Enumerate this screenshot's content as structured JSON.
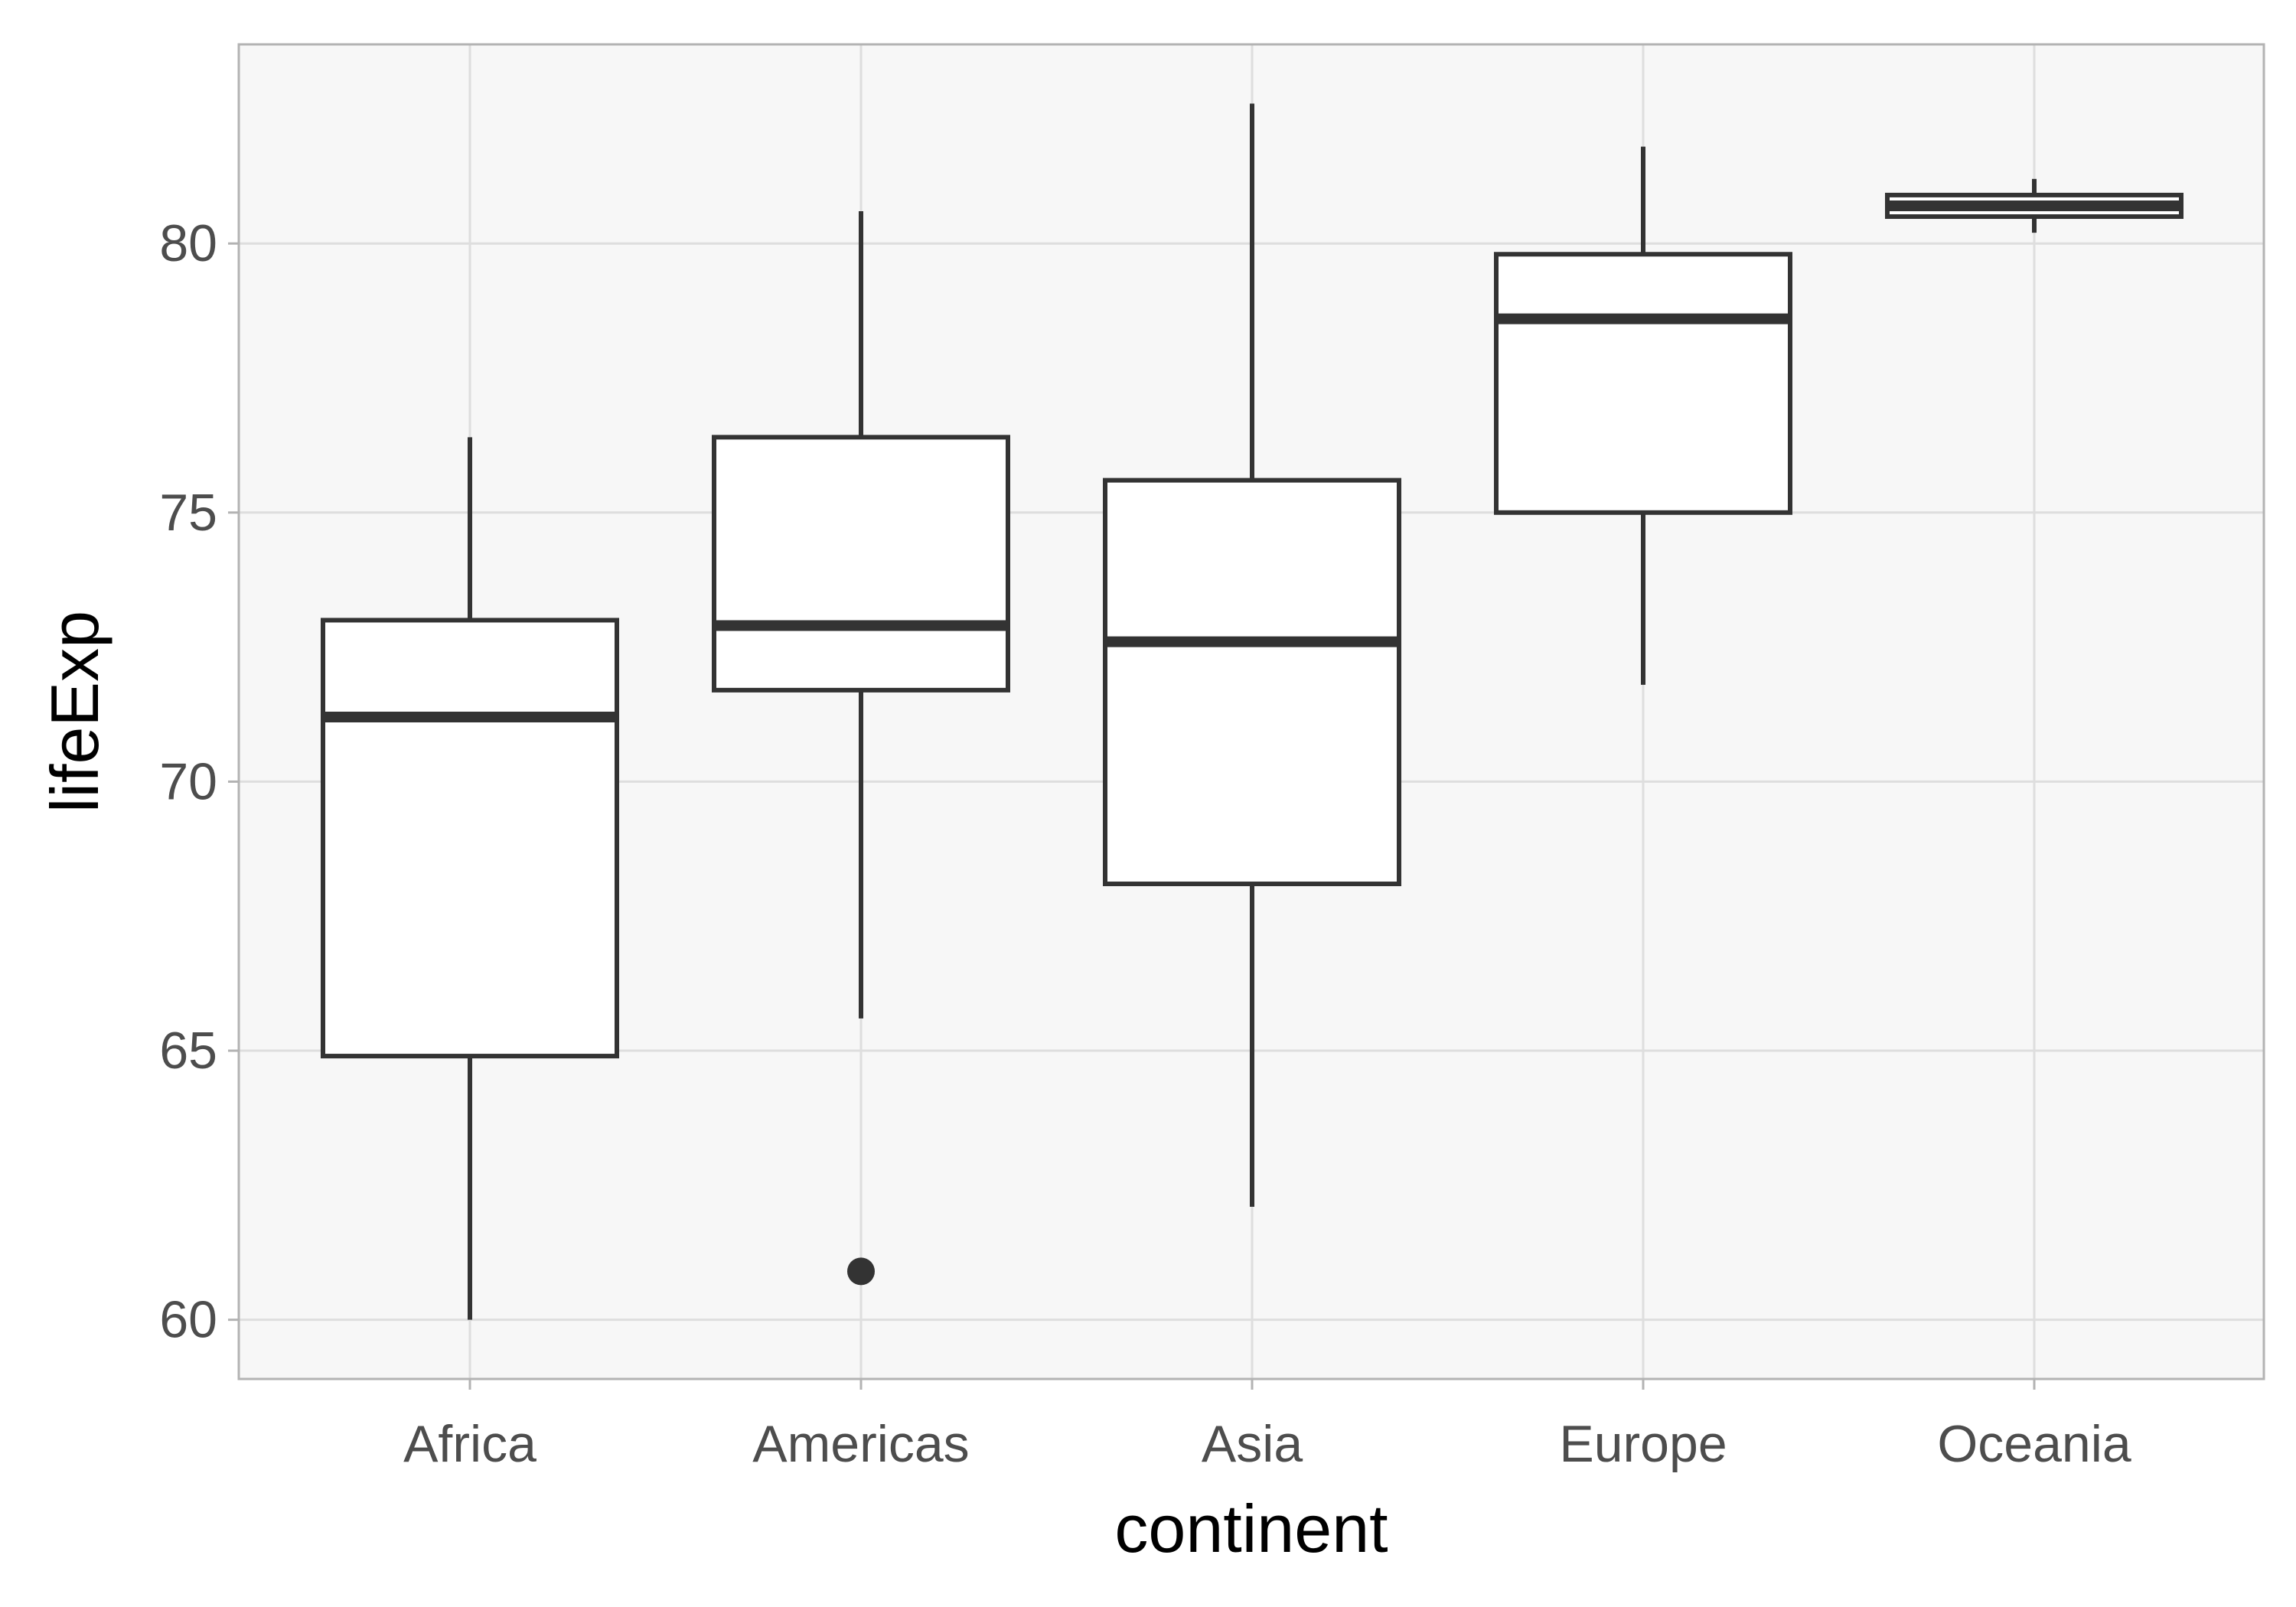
{
  "chart_data": {
    "type": "boxplot",
    "xlabel": "continent",
    "ylabel": "lifeExp",
    "ylim": [
      58.9,
      83.7
    ],
    "yticks": [
      60,
      65,
      70,
      75,
      80
    ],
    "yticks_labels": [
      "60",
      "65",
      "70",
      "75",
      "80"
    ],
    "grid": true,
    "categories": [
      "Africa",
      "Americas",
      "Asia",
      "Europe",
      "Oceania"
    ],
    "boxes": [
      {
        "category": "Africa",
        "whisker_low": 60.0,
        "q1": 64.9,
        "median": 71.2,
        "q3": 73.0,
        "whisker_high": 76.4,
        "outliers": []
      },
      {
        "category": "Americas",
        "whisker_low": 65.6,
        "q1": 71.7,
        "median": 72.9,
        "q3": 76.4,
        "whisker_high": 80.6,
        "outliers": [
          60.9
        ]
      },
      {
        "category": "Asia",
        "whisker_low": 62.1,
        "q1": 68.1,
        "median": 72.6,
        "q3": 75.6,
        "whisker_high": 82.6,
        "outliers": []
      },
      {
        "category": "Europe",
        "whisker_low": 71.8,
        "q1": 75.0,
        "median": 78.6,
        "q3": 79.8,
        "whisker_high": 81.8,
        "outliers": []
      },
      {
        "category": "Oceania",
        "whisker_low": 80.2,
        "q1": 80.5,
        "median": 80.7,
        "q3": 80.9,
        "whisker_high": 81.2,
        "outliers": []
      }
    ],
    "colors": {
      "panel_background": "#f7f7f7",
      "grid": "#dedede",
      "panel_border": "#b3b3b3",
      "box_fill": "#ffffff",
      "box_stroke": "#333333"
    }
  }
}
